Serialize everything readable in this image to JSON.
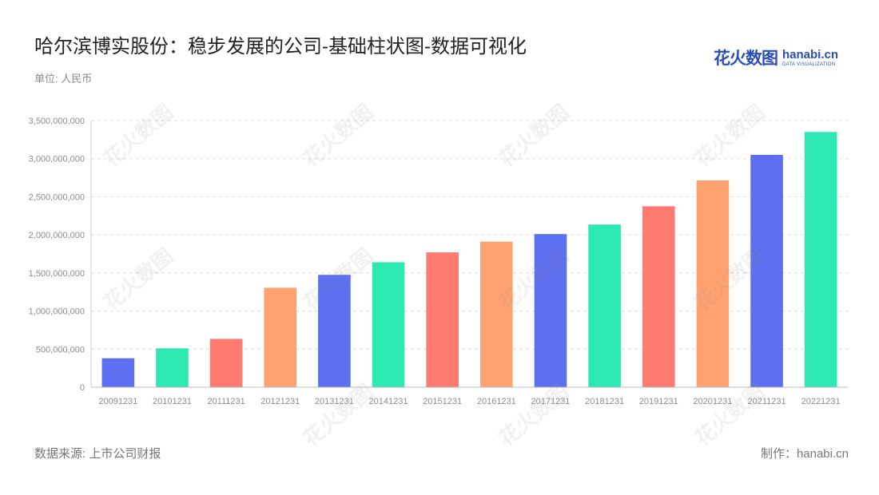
{
  "title": "哈尔滨博实股份：稳步发展的公司-基础柱状图-数据可视化",
  "unit_label": "单位: 人民币",
  "logo": {
    "cn": "花火数图",
    "en": "hanabi.cn",
    "sub": "DATA VISUALIZATION"
  },
  "footer": {
    "source": "数据来源: 上市公司财报",
    "maker": "制作：hanabi.cn"
  },
  "watermark": "花火数图 hanabi.cn",
  "chart_data": {
    "type": "bar",
    "categories": [
      "20091231",
      "20101231",
      "20111231",
      "20121231",
      "20131231",
      "20141231",
      "20151231",
      "20161231",
      "20171231",
      "20181231",
      "20191231",
      "20201231",
      "20211231",
      "20221231"
    ],
    "values": [
      380000000,
      510000000,
      635000000,
      1305000000,
      1475000000,
      1640000000,
      1770000000,
      1910000000,
      2010000000,
      2135000000,
      2375000000,
      2715000000,
      3050000000,
      3350000000
    ],
    "colors": [
      "#5b6ff0",
      "#2de8b0",
      "#ff7a70",
      "#ffa270",
      "#5b6ff0",
      "#2de8b0",
      "#ff7a70",
      "#ffa270",
      "#5b6ff0",
      "#2de8b0",
      "#ff7a70",
      "#ffa270",
      "#5b6ff0",
      "#2de8b0"
    ],
    "ylim": [
      0,
      3500000000
    ],
    "yticks": [
      "0",
      "500,000,000",
      "1,000,000,000",
      "1,500,000,000",
      "2,000,000,000",
      "2,500,000,000",
      "3,000,000,000",
      "3,500,000,000"
    ],
    "grid": true,
    "legend": "none"
  }
}
